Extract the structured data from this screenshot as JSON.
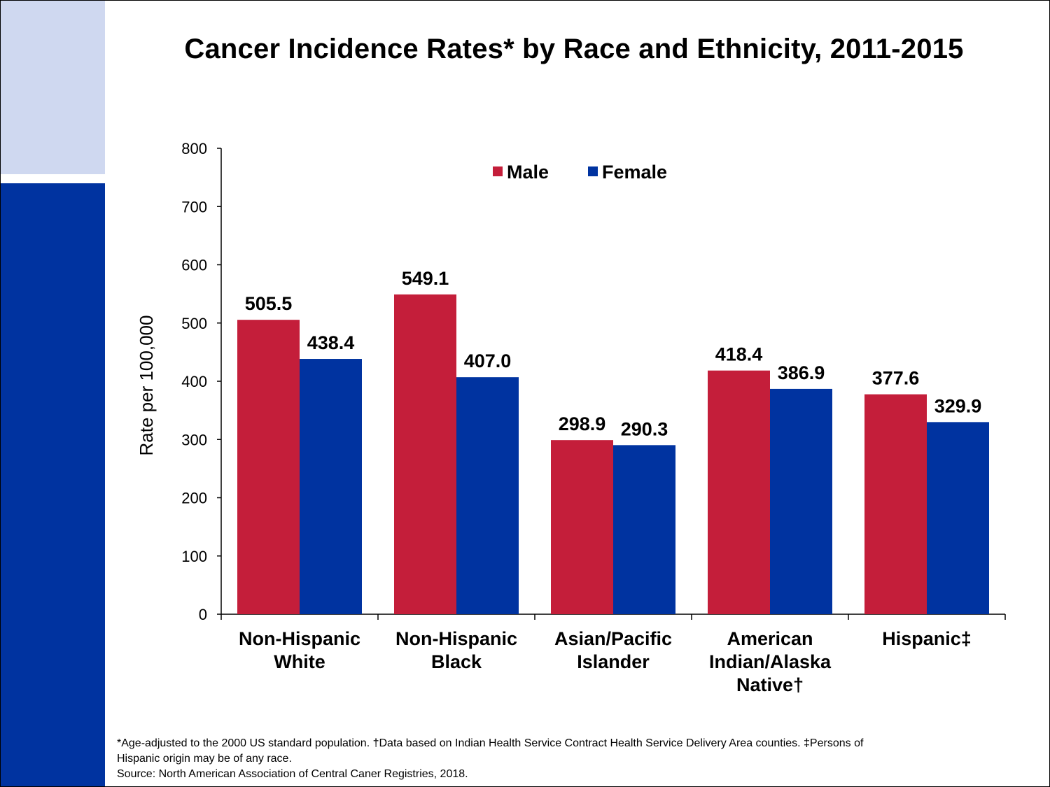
{
  "title": "Cancer Incidence Rates* by Race and Ethnicity, 2011-2015",
  "footnote": {
    "line1": "*Age-adjusted to the 2000 US standard population. †Data based on Indian Health Service Contract Health Service Delivery Area counties. ‡Persons of",
    "line2": "Hispanic origin may be of any race.",
    "source": "Source: North American Association of Central Caner Registries, 2018."
  },
  "colors": {
    "male": "#c41e3a",
    "female": "#0033a0",
    "band_light": "#cfd8f0",
    "band_dark": "#0033a0"
  },
  "chart_data": {
    "type": "bar",
    "title": "Cancer Incidence Rates* by Race and Ethnicity, 2011-2015",
    "xlabel": "",
    "ylabel": "Rate per 100,000",
    "ylim": [
      0,
      800
    ],
    "yticks": [
      "0",
      "100",
      "200",
      "300",
      "400",
      "500",
      "600",
      "700",
      "800"
    ],
    "grid": false,
    "legend_position": "top-center",
    "categories": [
      [
        "Non-Hispanic",
        "White"
      ],
      [
        "Non-Hispanic",
        "Black"
      ],
      [
        "Asian/Pacific",
        "Islander"
      ],
      [
        "American",
        "Indian/Alaska",
        "Native†"
      ],
      [
        "Hispanic‡"
      ]
    ],
    "series": [
      {
        "name": "Male",
        "color": "#c41e3a",
        "values": [
          505.5,
          549.1,
          298.9,
          418.4,
          377.6
        ],
        "labels": [
          "505.5",
          "549.1",
          "298.9",
          "418.4",
          "377.6"
        ]
      },
      {
        "name": "Female",
        "color": "#0033a0",
        "values": [
          438.4,
          407.0,
          290.3,
          386.9,
          329.9
        ],
        "labels": [
          "438.4",
          "407.0",
          "290.3",
          "386.9",
          "329.9"
        ]
      }
    ]
  }
}
